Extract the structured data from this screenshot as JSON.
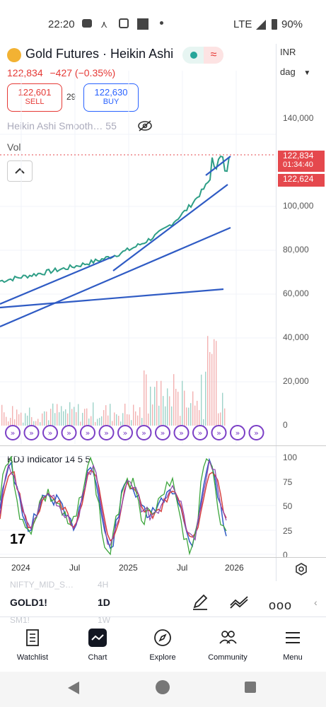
{
  "status_bar": {
    "time": "22:20",
    "network": "LTE",
    "battery": "90%"
  },
  "chart_header": {
    "title": "Gold Futures · Heikin Ashi",
    "last_price": "122,834",
    "change": "−427 (−0.35%)",
    "sell_price": "122,601",
    "sell_label": "SELL",
    "spread": "29",
    "buy_price": "122,630",
    "buy_label": "BUY",
    "indicator_1": "Heikin Ashi Smooth… 55",
    "volume_label": "Vol"
  },
  "right_axis": {
    "currency": "INR",
    "scale": "dag",
    "price_labels": [
      "140,000",
      "100,000",
      "80,000",
      "60,000"
    ],
    "volume_labels": [
      "40,000",
      "20,000",
      "0"
    ],
    "price_tag_1": "122,834",
    "price_tag_time": "01:34:40",
    "price_tag_2": "122,624"
  },
  "kdj": {
    "label": "KDJ Indicator 14 5 5",
    "levels": [
      "100",
      "75",
      "50",
      "25",
      "0"
    ]
  },
  "time_axis": {
    "labels": [
      "2024",
      "Jul",
      "2025",
      "Jul",
      "2026"
    ]
  },
  "watchlist": {
    "prev_symbol": "NIFTY_MID_S…",
    "prev_interval": "4H",
    "symbol": "GOLD1!",
    "interval": "1D",
    "next_symbol": "SM1!",
    "next_interval": "1W"
  },
  "tabs": [
    {
      "label": "Watchlist",
      "icon": "watchlist-icon"
    },
    {
      "label": "Chart",
      "icon": "chart-icon"
    },
    {
      "label": "Explore",
      "icon": "compass-icon"
    },
    {
      "label": "Community",
      "icon": "community-icon"
    },
    {
      "label": "Menu",
      "icon": "menu-icon"
    }
  ],
  "colors": {
    "accent": "#2962ff",
    "sell": "#e53935",
    "up": "#26a69a",
    "down": "#ef5350",
    "trend": "#2f5bc4"
  },
  "chart_data": {
    "type": "line",
    "y_axis_range": [
      50000,
      140000
    ],
    "main_series": {
      "x": [
        "2024",
        "Jul",
        "2025",
        "Jul",
        "2026"
      ],
      "y": [
        64000,
        74000,
        78000,
        100000,
        122834
      ]
    }
  }
}
